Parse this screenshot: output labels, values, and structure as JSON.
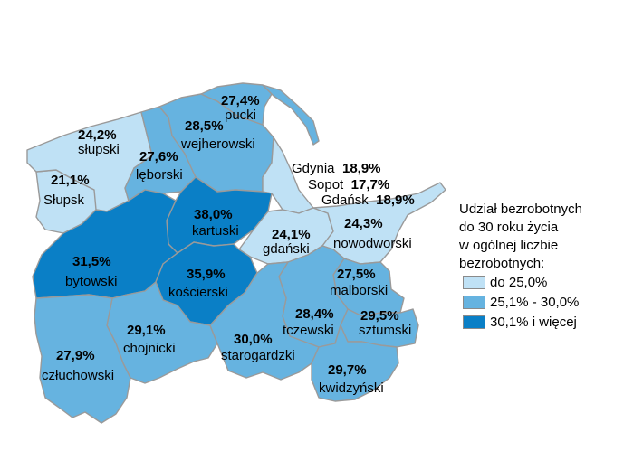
{
  "colors": {
    "low": "#bfe1f5",
    "mid": "#66b3e0",
    "high": "#0a7fc6"
  },
  "regions": [
    {
      "id": "slupski",
      "name": "słupski",
      "value": "24,2%",
      "cls": "low"
    },
    {
      "id": "slupsk",
      "name": "Słupsk",
      "value": "21,1%",
      "cls": "low"
    },
    {
      "id": "leborski",
      "name": "lęborski",
      "value": "27,6%",
      "cls": "mid"
    },
    {
      "id": "wejherowski",
      "name": "wejherowski",
      "value": "28,5%",
      "cls": "mid"
    },
    {
      "id": "pucki",
      "name": "pucki",
      "value": "27,4%",
      "cls": "mid"
    },
    {
      "id": "kartuski",
      "name": "kartuski",
      "value": "38,0%",
      "cls": "high"
    },
    {
      "id": "gdanski",
      "name": "gdański",
      "value": "24,1%",
      "cls": "low"
    },
    {
      "id": "nowodworski",
      "name": "nowodworski",
      "value": "24,3%",
      "cls": "low"
    },
    {
      "id": "bytowski",
      "name": "bytowski",
      "value": "31,5%",
      "cls": "high"
    },
    {
      "id": "koscierski",
      "name": "kościerski",
      "value": "35,9%",
      "cls": "high"
    },
    {
      "id": "malborski",
      "name": "malborski",
      "value": "27,5%",
      "cls": "mid"
    },
    {
      "id": "tczewski",
      "name": "tczewski",
      "value": "28,4%",
      "cls": "mid"
    },
    {
      "id": "sztumski",
      "name": "sztumski",
      "value": "29,5%",
      "cls": "mid"
    },
    {
      "id": "chojnicki",
      "name": "chojnicki",
      "value": "29,1%",
      "cls": "mid"
    },
    {
      "id": "starogardzki",
      "name": "starogardzki",
      "value": "30,0%",
      "cls": "mid"
    },
    {
      "id": "kwidzynski",
      "name": "kwidzyński",
      "value": "29,7%",
      "cls": "mid"
    },
    {
      "id": "czluchowski",
      "name": "człuchowski",
      "value": "27,9%",
      "cls": "mid"
    }
  ],
  "cities": [
    {
      "name": "Gdynia",
      "value": "18,9%"
    },
    {
      "name": "Sopot",
      "value": "17,7%"
    },
    {
      "name": "Gdańsk",
      "value": "18,9%"
    }
  ],
  "legend": {
    "title_lines": [
      "Udział bezrobotnych",
      "do 30 roku życia",
      "w ogólnej liczbie",
      "bezrobotnych:"
    ],
    "items": [
      {
        "label": "do 25,0%",
        "cls": "low"
      },
      {
        "label": "25,1% - 30,0%",
        "cls": "mid"
      },
      {
        "label": "30,1% i więcej",
        "cls": "high"
      }
    ]
  }
}
